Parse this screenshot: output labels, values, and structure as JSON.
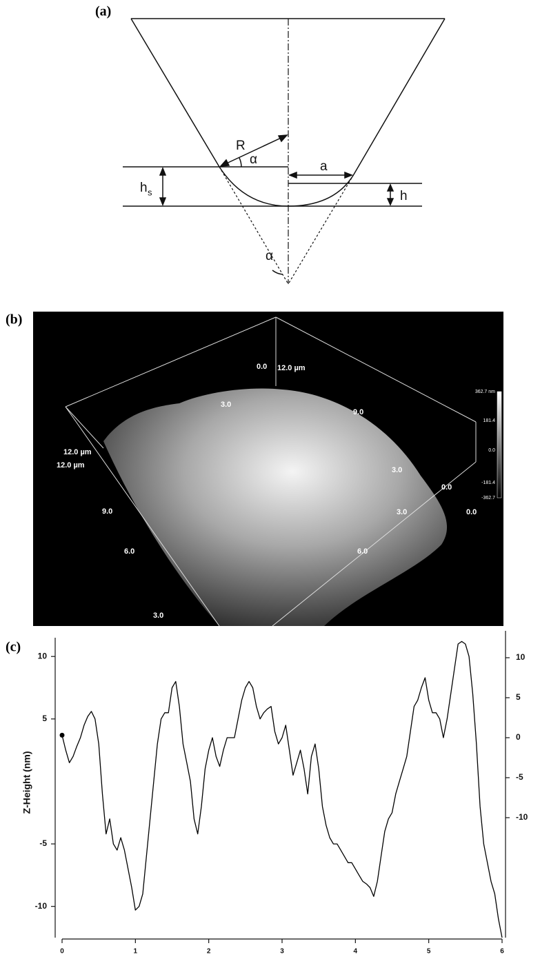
{
  "diagram": {
    "label": "(a)",
    "radius": "R",
    "angle_top": "α",
    "contact_radius": "a",
    "cap_height_main": "h",
    "cap_height_sub": "s",
    "depth": "h",
    "angle_bottom": "α"
  },
  "afm": {
    "label": "(b)",
    "axis_labels": [
      "0.0",
      "12.0 µm",
      "3.0",
      "9.0",
      "12.0 µm",
      "12.0 µm",
      "9.0",
      "6.0",
      "3.0",
      "3.0",
      "0.0",
      "0.0",
      "3.0",
      "6.0"
    ],
    "colorbar_labels": [
      "362.7 nm",
      "181.4",
      "0.0",
      "-181.4",
      "-362.7"
    ]
  },
  "chart_data": {
    "type": "line",
    "label": "(c)",
    "y_label": "Z-Height (nm)",
    "x": [
      0,
      0.05,
      0.1,
      0.15,
      0.2,
      0.25,
      0.3,
      0.35,
      0.4,
      0.45,
      0.5,
      0.55,
      0.6,
      0.65,
      0.7,
      0.75,
      0.8,
      0.85,
      0.9,
      0.95,
      1.0,
      1.05,
      1.1,
      1.15,
      1.2,
      1.25,
      1.3,
      1.35,
      1.4,
      1.45,
      1.5,
      1.55,
      1.6,
      1.65,
      1.7,
      1.75,
      1.8,
      1.85,
      1.9,
      1.95,
      2.0,
      2.05,
      2.1,
      2.15,
      2.2,
      2.25,
      2.3,
      2.35,
      2.4,
      2.45,
      2.5,
      2.55,
      2.6,
      2.65,
      2.7,
      2.75,
      2.8,
      2.85,
      2.9,
      2.95,
      3.0,
      3.05,
      3.1,
      3.15,
      3.2,
      3.25,
      3.3,
      3.35,
      3.4,
      3.45,
      3.5,
      3.55,
      3.6,
      3.65,
      3.7,
      3.75,
      3.8,
      3.85,
      3.9,
      3.95,
      4.0,
      4.05,
      4.1,
      4.15,
      4.2,
      4.25,
      4.3,
      4.35,
      4.4,
      4.45,
      4.5,
      4.55,
      4.6,
      4.65,
      4.7,
      4.75,
      4.8,
      4.85,
      4.9,
      4.95,
      5.0,
      5.05,
      5.1,
      5.15,
      5.2,
      5.25,
      5.3,
      5.35,
      5.4,
      5.45,
      5.5,
      5.55,
      5.6,
      5.65,
      5.7,
      5.75,
      5.8,
      5.85,
      5.9,
      5.95,
      6.0
    ],
    "series": [
      {
        "color": "#000000",
        "values": [
          3.7,
          2.5,
          1.5,
          2,
          2.8,
          3.5,
          4.5,
          5.2,
          5.6,
          5,
          3,
          -1,
          -4.2,
          -3,
          -5,
          -5.5,
          -4.5,
          -5.5,
          -7,
          -8.5,
          -10.3,
          -10,
          -9,
          -6,
          -3,
          0,
          3,
          5,
          5.5,
          5.5,
          7.5,
          8,
          6,
          3,
          1.5,
          0,
          -3,
          -4.2,
          -2,
          1,
          2.5,
          3.5,
          2,
          1.2,
          2.5,
          3.5,
          3.5,
          3.5,
          5,
          6.5,
          7.5,
          8,
          7.5,
          6,
          5,
          5.5,
          5.8,
          6,
          4,
          3,
          3.5,
          4.5,
          2.5,
          0.5,
          1.5,
          2.5,
          1,
          -1,
          2,
          3,
          1,
          -2,
          -3.5,
          -4.5,
          -5,
          -5,
          -5.5,
          -6,
          -6.5,
          -6.5,
          -7,
          -7.5,
          -8,
          -8.2,
          -8.5,
          -9.2,
          -8,
          -6,
          -4,
          -3,
          -2.5,
          -1,
          0,
          1,
          2,
          4,
          6,
          6.5,
          7.5,
          8.3,
          6.5,
          5.5,
          5.5,
          5,
          3.5,
          5,
          7,
          9,
          11,
          11.2,
          11,
          10,
          7,
          3,
          -2,
          -5,
          -6.5,
          -8,
          -9,
          -11,
          -12.5
        ]
      }
    ],
    "xlim": [
      0,
      6
    ],
    "xticks": [
      0,
      1,
      2,
      3,
      4,
      5,
      6
    ],
    "ylim": [
      -12.5,
      11.5
    ],
    "yticks": [
      10,
      5,
      -5,
      -10
    ],
    "y2lim": [
      -25,
      12.5
    ],
    "y2ticks": [
      10,
      5,
      0,
      -5,
      -10
    ]
  }
}
